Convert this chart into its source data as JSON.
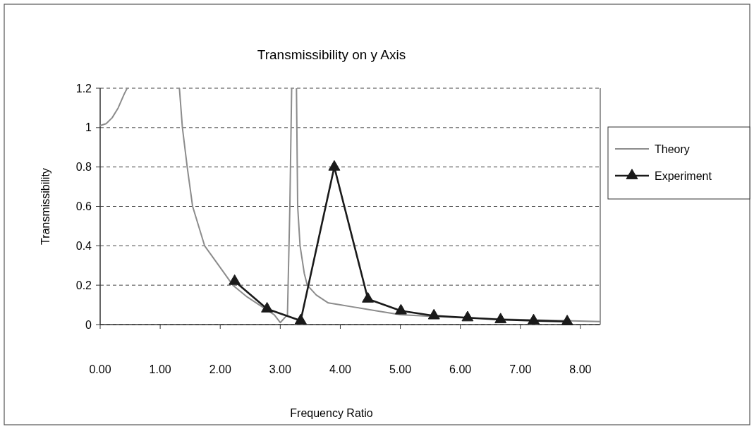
{
  "chart_data": {
    "type": "line",
    "title": "Transmissibility on y Axis",
    "xlabel": "Frequency Ratio",
    "ylabel": "Transmissibility",
    "xlim": [
      0,
      8.33
    ],
    "xticks": [
      {
        "value": 0,
        "label": "0.00"
      },
      {
        "value": 1,
        "label": "1.00"
      },
      {
        "value": 2,
        "label": "2.00"
      },
      {
        "value": 3,
        "label": "3.00"
      },
      {
        "value": 4,
        "label": "4.00"
      },
      {
        "value": 5,
        "label": "5.00"
      },
      {
        "value": 6,
        "label": "6.00"
      },
      {
        "value": 7,
        "label": "7.00"
      },
      {
        "value": 8,
        "label": "8.00"
      }
    ],
    "ylim": [
      0,
      1.2
    ],
    "yticks": [
      0,
      0.2,
      0.4,
      0.6,
      0.8,
      1,
      1.2
    ],
    "grid": "y",
    "legend": "right",
    "series": [
      {
        "name": "Theory",
        "color": "#8c8c8c",
        "marker": "none",
        "x": [
          0,
          0.1,
          0.2,
          0.3,
          0.4,
          0.45,
          0.9,
          1.32,
          1.37,
          1.45,
          1.54,
          1.74,
          2.0,
          2.21,
          2.45,
          2.7,
          2.9,
          3.0,
          3.12,
          3.16,
          3.19,
          3.23,
          3.27,
          3.29,
          3.33,
          3.4,
          3.45,
          3.6,
          3.8,
          4.0,
          4.2,
          4.6,
          5.0,
          5.5,
          6.0,
          7.0,
          8.33
        ],
        "values": [
          1.01,
          1.02,
          1.05,
          1.1,
          1.17,
          1.2,
          null,
          1.2,
          1.0,
          0.8,
          0.6,
          0.4,
          0.29,
          0.2,
          0.14,
          0.09,
          0.05,
          0.01,
          0.05,
          0.6,
          1.2,
          null,
          1.2,
          0.6,
          0.4,
          0.26,
          0.2,
          0.15,
          0.11,
          0.1,
          0.09,
          0.07,
          0.05,
          0.042,
          0.035,
          0.025,
          0.015
        ]
      },
      {
        "name": "Experiment",
        "color": "#1a1a1a",
        "marker": "triangle",
        "x": [
          2.24,
          2.78,
          3.34,
          3.9,
          4.46,
          5.01,
          5.56,
          6.12,
          6.67,
          7.22,
          7.78
        ],
        "values": [
          0.22,
          0.08,
          0.02,
          0.8,
          0.13,
          0.07,
          0.045,
          0.035,
          0.025,
          0.02,
          0.015
        ]
      }
    ]
  }
}
